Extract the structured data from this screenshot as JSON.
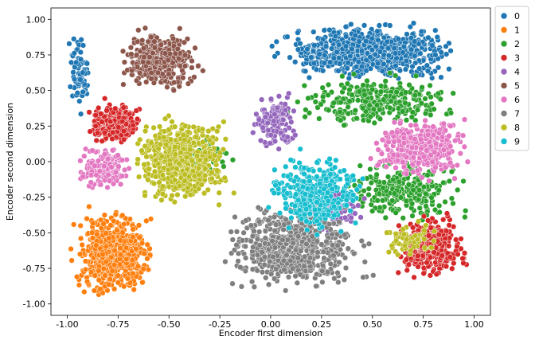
{
  "chart_data": {
    "type": "scatter",
    "title": "",
    "xlabel": "Encoder first dimension",
    "ylabel": "Encoder second dimension",
    "xlim": [
      -1.08,
      1.08
    ],
    "ylim": [
      -1.08,
      1.08
    ],
    "xticks": [
      "-1.00",
      "-0.75",
      "-0.50",
      "-0.25",
      "0.00",
      "0.25",
      "0.50",
      "0.75",
      "1.00"
    ],
    "yticks": [
      "1.00",
      "0.75",
      "0.50",
      "0.25",
      "0.00",
      "-0.25",
      "-0.50",
      "-0.75",
      "-1.00"
    ],
    "grid": false,
    "legend_position": "outside-top-right",
    "marker_edge_color": "#ffffff",
    "series": [
      {
        "name": "0",
        "color": "#1f77b4",
        "clusters": [
          {
            "x": [
              -0.05,
              1.0
            ],
            "y": [
              0.55,
              1.0
            ],
            "n": 700
          },
          {
            "x": [
              -1.0,
              -0.88
            ],
            "y": [
              0.3,
              0.95
            ],
            "n": 80
          }
        ]
      },
      {
        "name": "1",
        "color": "#ff7f0e",
        "clusters": [
          {
            "x": [
              -1.0,
              -0.55
            ],
            "y": [
              -1.0,
              -0.28
            ],
            "n": 600
          }
        ]
      },
      {
        "name": "2",
        "color": "#2ca02c",
        "clusters": [
          {
            "x": [
              0.05,
              1.0
            ],
            "y": [
              0.2,
              0.65
            ],
            "n": 300
          },
          {
            "x": [
              0.3,
              1.0
            ],
            "y": [
              -0.45,
              0.05
            ],
            "n": 250
          },
          {
            "x": [
              -0.6,
              -0.1
            ],
            "y": [
              -0.1,
              0.2
            ],
            "n": 40
          }
        ]
      },
      {
        "name": "3",
        "color": "#d62728",
        "clusters": [
          {
            "x": [
              -0.92,
              -0.62
            ],
            "y": [
              0.1,
              0.45
            ],
            "n": 280
          },
          {
            "x": [
              0.58,
              1.0
            ],
            "y": [
              -0.85,
              -0.35
            ],
            "n": 350
          }
        ]
      },
      {
        "name": "4",
        "color": "#9467bd",
        "clusters": [
          {
            "x": [
              -0.1,
              0.15
            ],
            "y": [
              0.05,
              0.5
            ],
            "n": 150
          },
          {
            "x": [
              0.05,
              0.5
            ],
            "y": [
              -0.55,
              -0.1
            ],
            "n": 120
          }
        ]
      },
      {
        "name": "5",
        "color": "#8c564b",
        "clusters": [
          {
            "x": [
              -0.78,
              -0.3
            ],
            "y": [
              0.45,
              0.97
            ],
            "n": 350
          }
        ]
      },
      {
        "name": "6",
        "color": "#e377c2",
        "clusters": [
          {
            "x": [
              0.45,
              1.0
            ],
            "y": [
              -0.15,
              0.35
            ],
            "n": 400
          },
          {
            "x": [
              -0.98,
              -0.65
            ],
            "y": [
              -0.25,
              0.15
            ],
            "n": 150
          }
        ]
      },
      {
        "name": "7",
        "color": "#7f7f7f",
        "clusters": [
          {
            "x": [
              -0.3,
              0.55
            ],
            "y": [
              -0.95,
              -0.25
            ],
            "n": 600
          }
        ]
      },
      {
        "name": "8",
        "color": "#bcbd22",
        "clusters": [
          {
            "x": [
              -0.72,
              -0.15
            ],
            "y": [
              -0.35,
              0.35
            ],
            "n": 600
          },
          {
            "x": [
              0.5,
              0.85
            ],
            "y": [
              -0.7,
              -0.4
            ],
            "n": 60
          }
        ]
      },
      {
        "name": "9",
        "color": "#17becf",
        "clusters": [
          {
            "x": [
              -0.05,
              0.5
            ],
            "y": [
              -0.55,
              0.1
            ],
            "n": 350
          }
        ]
      }
    ]
  }
}
